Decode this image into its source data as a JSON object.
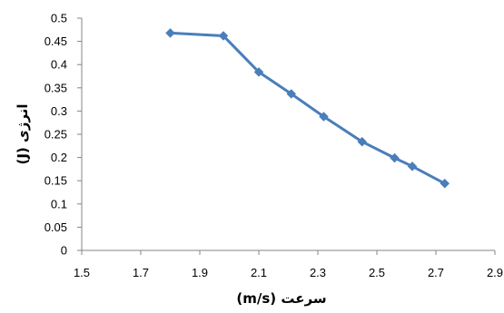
{
  "chart_data": {
    "type": "line",
    "title": "",
    "xlabel": "سرعت (m/s)",
    "ylabel": "انرژی (J)",
    "xlim": [
      1.5,
      2.9
    ],
    "ylim": [
      0,
      0.5
    ],
    "x_ticks": [
      "1.5",
      "1.7",
      "1.9",
      "2.1",
      "2.3",
      "2.5",
      "2.7",
      "2.9"
    ],
    "y_ticks": [
      "0",
      "0.05",
      "0.1",
      "0.15",
      "0.2",
      "0.25",
      "0.3",
      "0.35",
      "0.4",
      "0.45",
      "0.5"
    ],
    "grid": false,
    "legend": "none",
    "series": [
      {
        "color": "#4a7ebb",
        "marker": "diamond",
        "x": [
          1.8,
          1.98,
          2.1,
          2.21,
          2.32,
          2.45,
          2.56,
          2.62,
          2.73
        ],
        "y": [
          0.468,
          0.462,
          0.384,
          0.337,
          0.288,
          0.234,
          0.199,
          0.181,
          0.144
        ]
      }
    ]
  }
}
